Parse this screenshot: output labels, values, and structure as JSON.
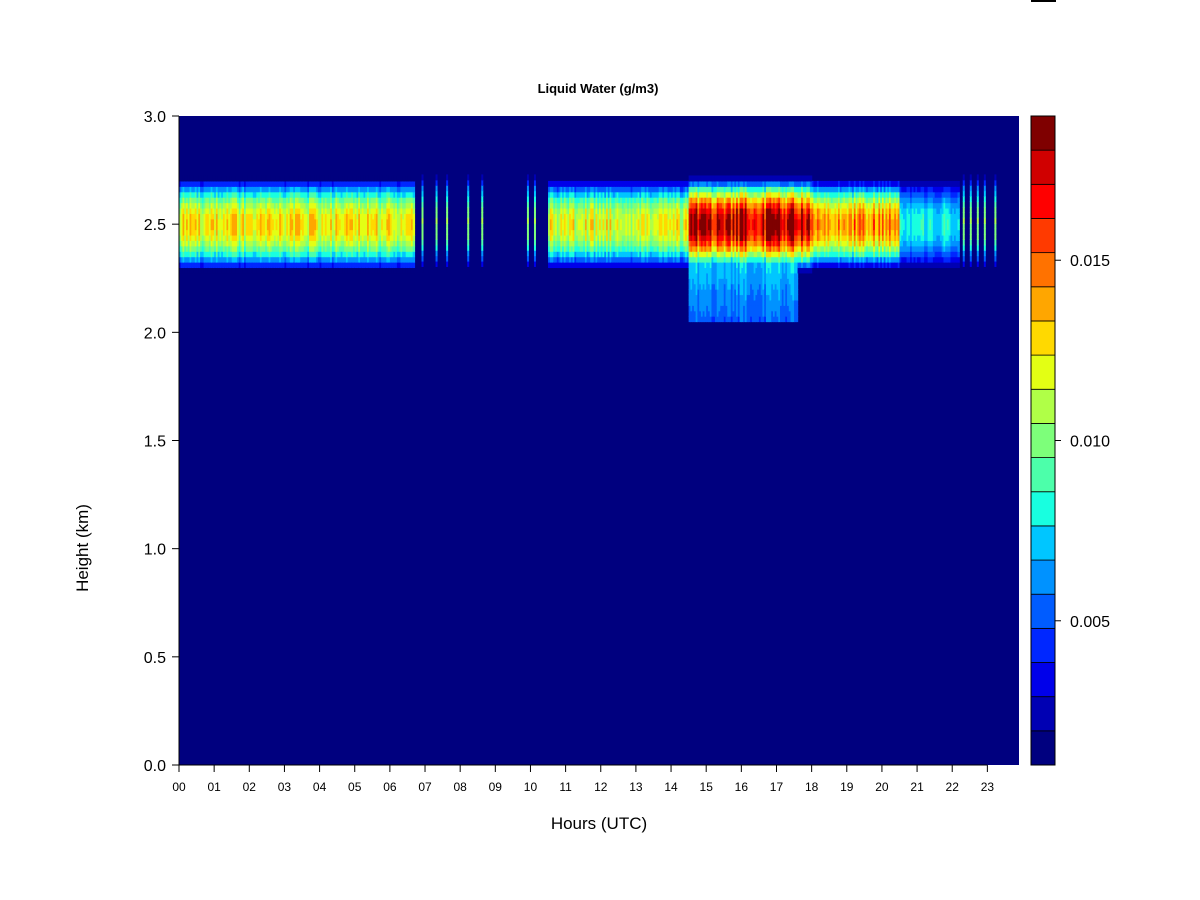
{
  "chart_data": {
    "type": "heatmap",
    "title": "Liquid Water (g/m3)",
    "xlabel": "Hours (UTC)",
    "ylabel": "Height (km)",
    "xlim": [
      0,
      23.9
    ],
    "ylim": [
      0,
      3.0
    ],
    "x_ticks": [
      {
        "value": 0,
        "label": "00"
      },
      {
        "value": 1,
        "label": "01"
      },
      {
        "value": 2,
        "label": "02"
      },
      {
        "value": 3,
        "label": "03"
      },
      {
        "value": 4,
        "label": "04"
      },
      {
        "value": 5,
        "label": "05"
      },
      {
        "value": 6,
        "label": "06"
      },
      {
        "value": 7,
        "label": "07"
      },
      {
        "value": 8,
        "label": "08"
      },
      {
        "value": 9,
        "label": "09"
      },
      {
        "value": 10,
        "label": "10"
      },
      {
        "value": 11,
        "label": "11"
      },
      {
        "value": 12,
        "label": "12"
      },
      {
        "value": 13,
        "label": "13"
      },
      {
        "value": 14,
        "label": "14"
      },
      {
        "value": 15,
        "label": "15"
      },
      {
        "value": 16,
        "label": "16"
      },
      {
        "value": 17,
        "label": "17"
      },
      {
        "value": 18,
        "label": "18"
      },
      {
        "value": 19,
        "label": "19"
      },
      {
        "value": 20,
        "label": "20"
      },
      {
        "value": 21,
        "label": "21"
      },
      {
        "value": 22,
        "label": "22"
      },
      {
        "value": 23,
        "label": "23"
      }
    ],
    "y_ticks": [
      {
        "value": 0.0,
        "label": "0.0"
      },
      {
        "value": 0.5,
        "label": "0.5"
      },
      {
        "value": 1.0,
        "label": "1.0"
      },
      {
        "value": 1.5,
        "label": "1.5"
      },
      {
        "value": 2.0,
        "label": "2.0"
      },
      {
        "value": 2.5,
        "label": "2.5"
      },
      {
        "value": 3.0,
        "label": "3.0"
      }
    ],
    "colorbar": {
      "range": [
        0.001,
        0.019
      ],
      "levels": [
        0.001,
        0.002,
        0.003,
        0.004,
        0.005,
        0.006,
        0.007,
        0.008,
        0.009,
        0.01,
        0.011,
        0.012,
        0.013,
        0.014,
        0.015,
        0.016,
        0.017,
        0.018,
        0.019
      ],
      "colors": [
        "#00007f",
        "#0000b3",
        "#0000ea",
        "#0027ff",
        "#005cff",
        "#0092ff",
        "#00c6ff",
        "#18ffe0",
        "#4cffaa",
        "#7dff7a",
        "#b0ff47",
        "#e3ff14",
        "#ffd900",
        "#ffa600",
        "#ff7200",
        "#ff3a00",
        "#ff0000",
        "#d00000",
        "#7f0000"
      ],
      "ticks": [
        {
          "value": 0.005,
          "label": "0.005"
        },
        {
          "value": 0.01,
          "label": "0.010"
        },
        {
          "value": 0.015,
          "label": "0.015"
        }
      ]
    },
    "background_value": 0.001,
    "cloud_layer": {
      "center_height_km": 2.5,
      "segments": [
        {
          "t0": 0.0,
          "t1": 6.7,
          "peak": 0.0125,
          "half_thickness_km": 0.22
        },
        {
          "t0": 10.5,
          "t1": 14.5,
          "peak": 0.012,
          "half_thickness_km": 0.21
        },
        {
          "t0": 14.5,
          "t1": 18.0,
          "peak": 0.018,
          "half_thickness_km": 0.22
        },
        {
          "t0": 18.0,
          "t1": 20.5,
          "peak": 0.0145,
          "half_thickness_km": 0.21
        },
        {
          "t0": 20.5,
          "t1": 22.2,
          "peak": 0.008,
          "half_thickness_km": 0.21
        }
      ],
      "lower_extension": {
        "t0": 14.5,
        "t1": 17.6,
        "base_km": 2.04,
        "peak": 0.0085
      },
      "streaks": [
        6.9,
        7.3,
        7.6,
        8.2,
        8.6,
        9.9,
        10.1,
        22.3,
        22.5,
        22.7,
        22.9,
        23.2
      ]
    }
  }
}
